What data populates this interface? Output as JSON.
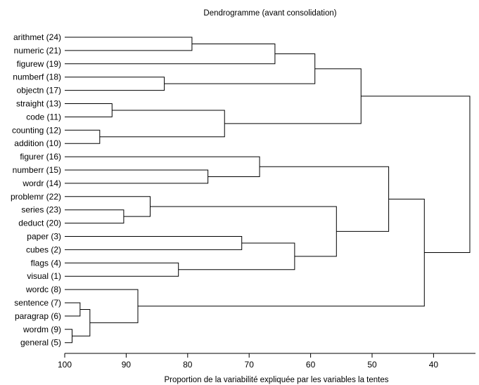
{
  "chart_data": {
    "type": "dendrogram",
    "title": "Dendrogramme (avant consolidation)",
    "xlabel": "Proportion de la variabilité expliquée par les variables la tentes",
    "ylabel": "",
    "xlim": [
      100,
      34
    ],
    "x_ticks": [
      "100",
      "90",
      "80",
      "70",
      "60",
      "50",
      "40"
    ],
    "x_tick_values": [
      100,
      90,
      80,
      70,
      60,
      50,
      40
    ],
    "leaves": [
      "arithmet (24)",
      "numeric (21)",
      "figurew (19)",
      "numberf  (18)",
      "objectn (17)",
      "straight (13)",
      "code (11)",
      "counting (12)",
      "addition (10)",
      "figurer (16)",
      "numberr (15)",
      "wordr (14)",
      "problemr (22)",
      "series (23)",
      "deduct (20)",
      "paper (3)",
      "cubes (2)",
      "flags (4)",
      "visual (1)",
      "wordc (8)",
      "sentence (7)",
      "paragrap (6)",
      "wordm (9)",
      "general (5)"
    ],
    "merges": [
      {
        "id": "m1",
        "left": 0,
        "right": 1,
        "height": 79.3
      },
      {
        "id": "m2",
        "left": "m1",
        "right": 2,
        "height": 65.8
      },
      {
        "id": "m3",
        "left": 3,
        "right": 4,
        "height": 83.8
      },
      {
        "id": "m4",
        "left": "m2",
        "right": "m3",
        "height": 59.3
      },
      {
        "id": "m5",
        "left": 5,
        "right": 6,
        "height": 92.3
      },
      {
        "id": "m6",
        "left": 7,
        "right": 8,
        "height": 94.3
      },
      {
        "id": "m7",
        "left": "m5",
        "right": "m6",
        "height": 74.0
      },
      {
        "id": "m8",
        "left": "m4",
        "right": "m7",
        "height": 51.8
      },
      {
        "id": "m9",
        "left": 10,
        "right": 11,
        "height": 76.7
      },
      {
        "id": "m10",
        "left": 9,
        "right": "m9",
        "height": 68.3
      },
      {
        "id": "m11",
        "left": 13,
        "right": 14,
        "height": 90.4
      },
      {
        "id": "m12",
        "left": 12,
        "right": "m11",
        "height": 86.1
      },
      {
        "id": "m13",
        "left": 15,
        "right": 16,
        "height": 71.2
      },
      {
        "id": "m14",
        "left": 17,
        "right": 18,
        "height": 81.5
      },
      {
        "id": "m15",
        "left": "m13",
        "right": "m14",
        "height": 62.6
      },
      {
        "id": "m16",
        "left": "m12",
        "right": "m15",
        "height": 55.8
      },
      {
        "id": "m17",
        "left": "m10",
        "right": "m16",
        "height": 47.3
      },
      {
        "id": "m18",
        "left": 20,
        "right": 21,
        "height": 97.5
      },
      {
        "id": "m19",
        "left": 22,
        "right": 23,
        "height": 98.8
      },
      {
        "id": "m20",
        "left": "m18",
        "right": "m19",
        "height": 95.9
      },
      {
        "id": "m21",
        "left": 19,
        "right": "m20",
        "height": 88.1
      },
      {
        "id": "m22",
        "left": "m17",
        "right": "m21",
        "height": 41.5
      },
      {
        "id": "m23",
        "left": "m8",
        "right": "m22",
        "height": 34.1
      }
    ],
    "grid": false,
    "legend": "none"
  }
}
